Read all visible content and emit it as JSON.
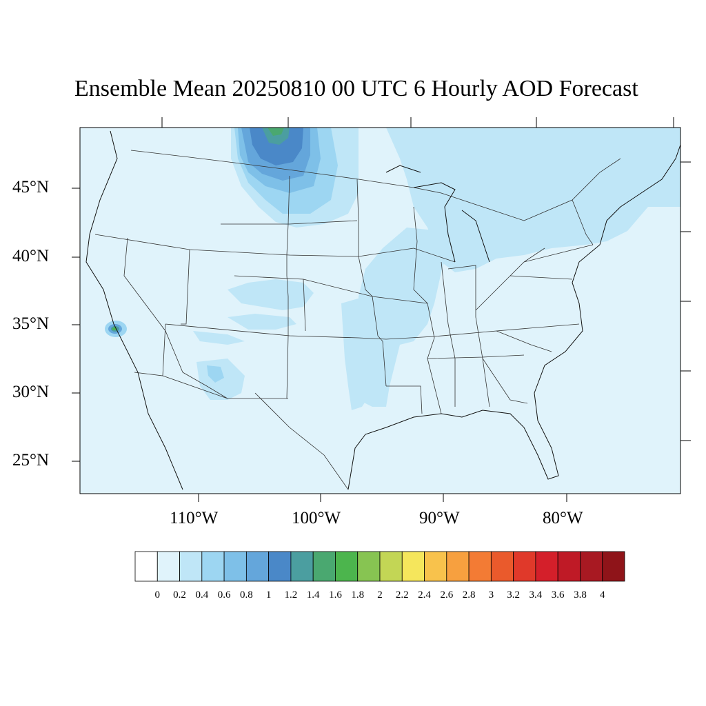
{
  "title": "Ensemble Mean 20250810 00 UTC 6 Hourly AOD Forecast",
  "map": {
    "projection": "Lambert conformal",
    "variable": "AOD",
    "background_value_range": [
      0.2,
      0.4
    ],
    "lat_labels": [
      "45°N",
      "40°N",
      "35°N",
      "30°N",
      "25°N"
    ],
    "lon_labels": [
      "110°W",
      "100°W",
      "90°W",
      "80°W"
    ],
    "features": [
      {
        "region": "Montana/North Dakota border",
        "max_level": "1.6-1.8"
      },
      {
        "region": "Southern California",
        "max_level": "1.6-1.8"
      },
      {
        "region": "Northeast / Great Lakes",
        "max_level": "0.4-0.6"
      }
    ]
  },
  "colorbar": {
    "labels": [
      "0",
      "0.2",
      "0.4",
      "0.6",
      "0.8",
      "1",
      "1.2",
      "1.4",
      "1.6",
      "1.8",
      "2",
      "2.2",
      "2.4",
      "2.6",
      "2.8",
      "3",
      "3.2",
      "3.4",
      "3.6",
      "3.8",
      "4"
    ],
    "colors": [
      "#ffffff",
      "#e0f3fb",
      "#bfe6f7",
      "#9dd6f2",
      "#7ec0e8",
      "#64a6db",
      "#4a88c8",
      "#4b9ea0",
      "#4aa870",
      "#4cb54d",
      "#87c452",
      "#c3d655",
      "#f5e65c",
      "#f8c24c",
      "#f7a03f",
      "#f37b34",
      "#ea5a2c",
      "#e0392a",
      "#d41f2a",
      "#bf1a26",
      "#a81922",
      "#8f1419"
    ]
  }
}
